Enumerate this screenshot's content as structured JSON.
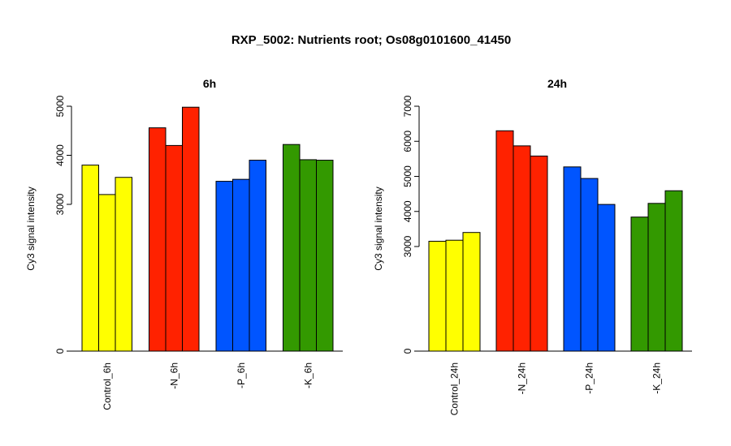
{
  "title": "RXP_5002: Nutrients root; Os08g0101600_41450",
  "chart_data": [
    {
      "type": "bar",
      "title": "6h",
      "ylabel": "Cy3 signal intensity",
      "yticks": [
        0,
        3000,
        4000,
        5000
      ],
      "ylim": [
        0,
        5000
      ],
      "axis_break": true,
      "categories": [
        "Control_6h",
        "-N_6h",
        "-P_6h",
        "-K_6h"
      ],
      "colors": [
        "#ffff00",
        "#ff2200",
        "#0055ff",
        "#339900"
      ],
      "values": [
        [
          3800,
          3200,
          3550
        ],
        [
          4560,
          4200,
          4980
        ],
        [
          3470,
          3510,
          3900
        ],
        [
          4220,
          3910,
          3900
        ]
      ]
    },
    {
      "type": "bar",
      "title": "24h",
      "ylabel": "Cy3 signal intensity",
      "yticks": [
        0,
        3000,
        4000,
        5000,
        6000,
        7000
      ],
      "ylim": [
        0,
        7000
      ],
      "axis_break": true,
      "categories": [
        "Control_24h",
        "-N_24h",
        "-P_24h",
        "-K_24h"
      ],
      "colors": [
        "#ffff00",
        "#ff2200",
        "#0055ff",
        "#339900"
      ],
      "values": [
        [
          3150,
          3180,
          3400
        ],
        [
          6300,
          5870,
          5580
        ],
        [
          5270,
          4940,
          4200
        ],
        [
          3840,
          4230,
          4590
        ]
      ]
    }
  ]
}
